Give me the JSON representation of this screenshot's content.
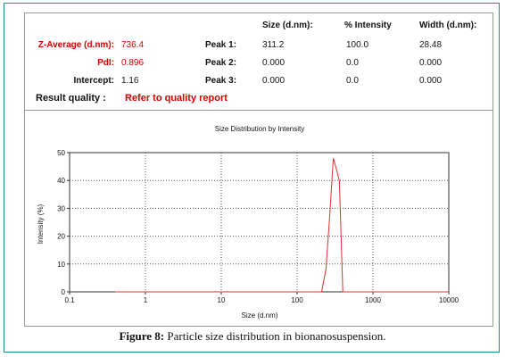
{
  "results": {
    "headers": {
      "size": "Size (d.nm):",
      "intensity": "% Intensity",
      "width": "Width (d.nm):"
    },
    "left": [
      {
        "label": "Z-Average (d.nm):",
        "value": "736.4"
      },
      {
        "label": "PdI:",
        "value": "0.896"
      },
      {
        "label": "Intercept:",
        "value": "1.16"
      }
    ],
    "peaks": [
      {
        "label": "Peak 1:",
        "size": "311.2",
        "intensity": "100.0",
        "width": "28.48"
      },
      {
        "label": "Peak 2:",
        "size": "0.000",
        "intensity": "0.0",
        "width": "0.000"
      },
      {
        "label": "Peak 3:",
        "size": "0.000",
        "intensity": "0.0",
        "width": "0.000"
      }
    ],
    "quality_label": "Result quality :",
    "quality_value": "Refer to quality report",
    "colors": {
      "label_red": "#d40000",
      "curve": "#e03030"
    }
  },
  "chart_data": {
    "type": "line",
    "title": "Size Distribution by Intensity",
    "xlabel": "Size (d.nm)",
    "ylabel": "Intensity (%)",
    "xscale": "log",
    "xlim": [
      0.1,
      10000
    ],
    "ylim": [
      0,
      50
    ],
    "xticks": [
      0.1,
      1,
      10,
      100,
      1000,
      10000
    ],
    "xtick_labels": [
      "0.1",
      "1",
      "10",
      "100",
      "1000",
      "10000"
    ],
    "yticks": [
      0,
      10,
      20,
      30,
      40,
      50
    ],
    "ytick_labels": [
      "0",
      "10",
      "20",
      "30",
      "40",
      "50"
    ],
    "grid": true,
    "series": [
      {
        "x": [
          0.4,
          10,
          100,
          210,
          240,
          270,
          300,
          330,
          360,
          380,
          400,
          10000
        ],
        "values": [
          0,
          0,
          0,
          0,
          8,
          28,
          48,
          44,
          40,
          20,
          0,
          0
        ]
      }
    ]
  },
  "caption": {
    "label": "Figure 8:",
    "text": "Particle size distribution in bionanosuspension."
  }
}
